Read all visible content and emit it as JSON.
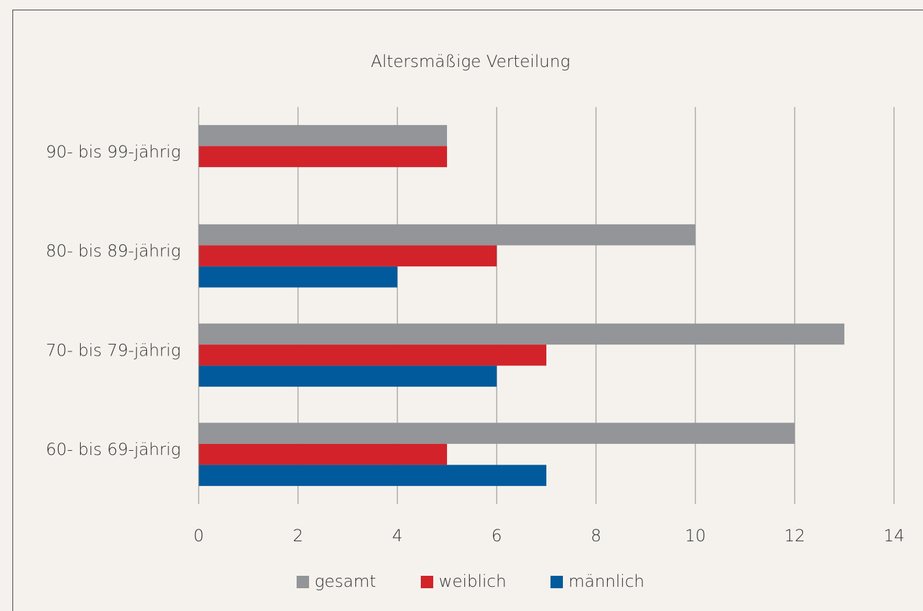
{
  "chart_data": {
    "type": "bar",
    "orientation": "horizontal",
    "title": "Altersmäßige Verteilung",
    "categories": [
      "90- bis 99-jährig",
      "80- bis 89-jährig",
      "70- bis 79-jährig",
      "60- bis 69-jährig"
    ],
    "series": [
      {
        "name": "gesamt",
        "color": "#939598",
        "values": [
          5,
          10,
          13,
          12
        ]
      },
      {
        "name": "weiblich",
        "color": "#d2232a",
        "values": [
          5,
          6,
          7,
          5
        ]
      },
      {
        "name": "männlich",
        "color": "#005a9c",
        "values": [
          0,
          4,
          6,
          7
        ]
      }
    ],
    "xlim": [
      0,
      14
    ],
    "xticks": [
      0,
      2,
      4,
      6,
      8,
      10,
      12,
      14
    ],
    "grid": true,
    "legend": "bottom"
  }
}
